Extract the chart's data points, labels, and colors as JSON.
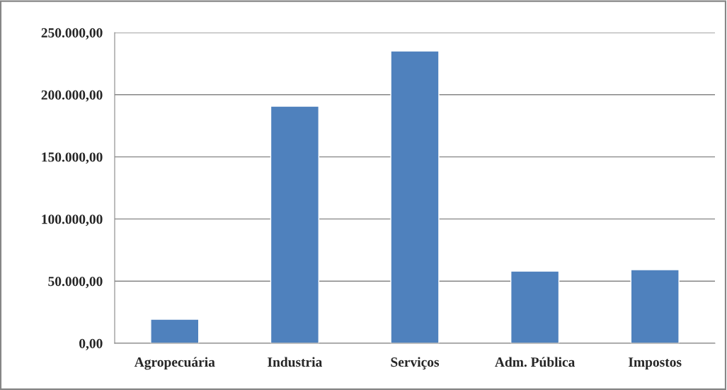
{
  "chart_data": {
    "type": "bar",
    "categories": [
      "Agropecuária",
      "Industria",
      "Serviços",
      "Adm. Pública",
      "Impostos"
    ],
    "values": [
      19400,
      190800,
      235200,
      58100,
      59200
    ],
    "color": "#4f81bd",
    "ylim": [
      0,
      250000
    ],
    "yticks": [
      {
        "value": 0,
        "label": "0,00"
      },
      {
        "value": 50000,
        "label": "50.000,00"
      },
      {
        "value": 100000,
        "label": "100.000,00"
      },
      {
        "value": 150000,
        "label": "150.000,00"
      },
      {
        "value": 200000,
        "label": "200.000,00"
      },
      {
        "value": 250000,
        "label": "250.000,00"
      }
    ],
    "grid": "y"
  }
}
